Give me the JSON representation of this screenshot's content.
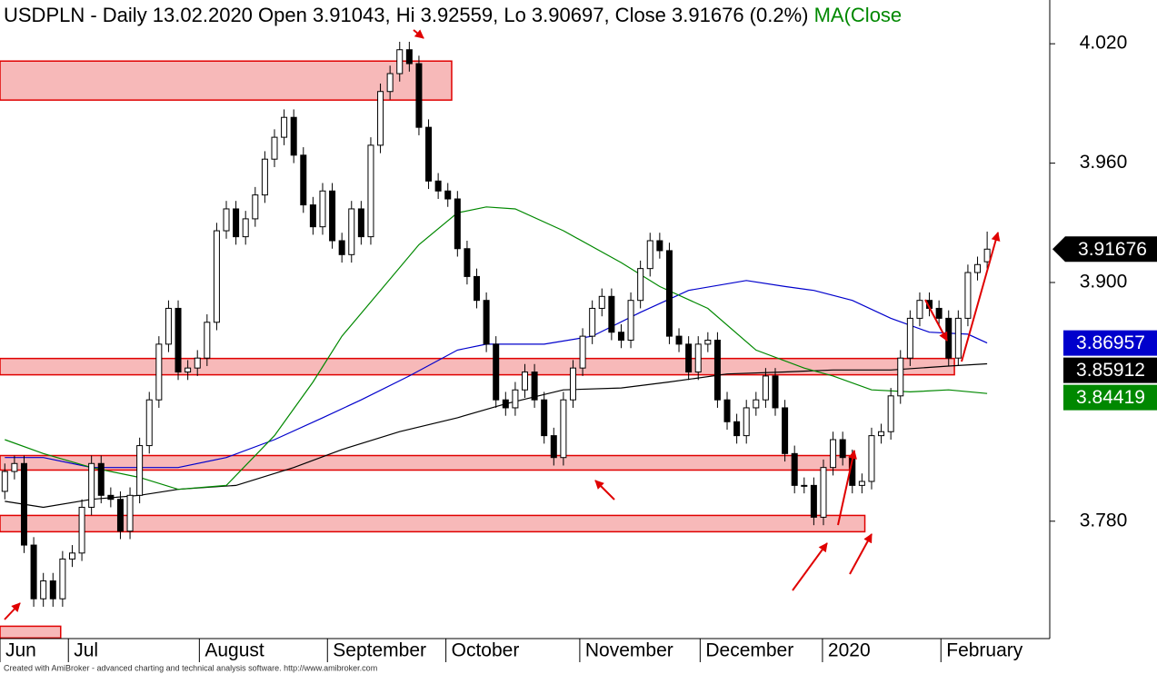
{
  "chart_data": {
    "type": "candlestick",
    "title": "USDPLN - Daily 13.02.2020 Open 3.91043, Hi 3.92559, Lo 3.90697, Close 3.91676 (0.2%)",
    "title_ma": "MA(Close",
    "footer": "Created with AmiBroker - advanced charting and technical analysis software. http://www.amibroker.com",
    "xlim": [
      -0.5,
      108.5
    ],
    "ylim": [
      3.721,
      4.042
    ],
    "grid": true,
    "yticks": [
      {
        "value": 4.02,
        "label": "4.020"
      },
      {
        "value": 3.96,
        "label": "3.960"
      },
      {
        "value": 3.9,
        "label": "3.900"
      },
      {
        "value": 3.78,
        "label": "3.780"
      }
    ],
    "xticks": [
      {
        "value": -0.5,
        "label": "Jun"
      },
      {
        "value": 6.6,
        "label": "Jul"
      },
      {
        "value": 20.2,
        "label": "August"
      },
      {
        "value": 33.5,
        "label": "September"
      },
      {
        "value": 45.8,
        "label": "October"
      },
      {
        "value": 59.7,
        "label": "November"
      },
      {
        "value": 72.2,
        "label": "December"
      },
      {
        "value": 84.9,
        "label": "2020"
      },
      {
        "value": 97.2,
        "label": "February"
      }
    ],
    "up_color": "#ffffff",
    "down_color": "#000000",
    "open": [
      3.795,
      3.805,
      3.809,
      3.768,
      3.741,
      3.75,
      3.741,
      3.761,
      3.764,
      3.787,
      3.809,
      3.793,
      3.791,
      3.775,
      3.793,
      3.818,
      3.841,
      3.869,
      3.887,
      3.855,
      3.857,
      3.862,
      3.88,
      3.926,
      3.937,
      3.923,
      3.932,
      3.944,
      3.962,
      3.973,
      3.983,
      3.964,
      3.939,
      3.928,
      3.946,
      3.921,
      3.914,
      3.937,
      3.923,
      3.969,
      3.996,
      4.005,
      4.017,
      4.01,
      3.978,
      3.951,
      3.946,
      3.942,
      3.917,
      3.903,
      3.891,
      3.869,
      3.841,
      3.837,
      3.846,
      3.855,
      3.841,
      3.823,
      3.812,
      3.841,
      3.857,
      3.873,
      3.887,
      3.893,
      3.875,
      3.871,
      3.891,
      3.907,
      3.921,
      3.916,
      3.873,
      3.869,
      3.855,
      3.869,
      3.871,
      3.841,
      3.83,
      3.823,
      3.837,
      3.841,
      3.853,
      3.837,
      3.814,
      3.798,
      3.798,
      3.782,
      3.807,
      3.821,
      3.812,
      3.798,
      3.8,
      3.823,
      3.825,
      3.843,
      3.862,
      3.882,
      3.891,
      3.887,
      3.882,
      3.862,
      3.882,
      3.905,
      3.91043
    ],
    "high": [
      3.809,
      3.813,
      3.813,
      3.772,
      3.754,
      3.754,
      3.765,
      3.768,
      3.791,
      3.813,
      3.813,
      3.797,
      3.795,
      3.797,
      3.822,
      3.845,
      3.873,
      3.891,
      3.891,
      3.861,
      3.866,
      3.884,
      3.93,
      3.941,
      3.941,
      3.936,
      3.948,
      3.966,
      3.977,
      3.987,
      3.987,
      3.968,
      3.943,
      3.95,
      3.95,
      3.925,
      3.941,
      3.941,
      3.973,
      4.0,
      4.009,
      4.021,
      4.021,
      4.014,
      3.982,
      3.955,
      3.95,
      3.946,
      3.921,
      3.907,
      3.895,
      3.873,
      3.845,
      3.85,
      3.859,
      3.859,
      3.845,
      3.827,
      3.845,
      3.861,
      3.877,
      3.891,
      3.897,
      3.897,
      3.879,
      3.895,
      3.911,
      3.925,
      3.925,
      3.92,
      3.877,
      3.873,
      3.873,
      3.875,
      3.875,
      3.845,
      3.834,
      3.841,
      3.845,
      3.857,
      3.857,
      3.841,
      3.818,
      3.802,
      3.802,
      3.811,
      3.825,
      3.825,
      3.816,
      3.804,
      3.827,
      3.829,
      3.847,
      3.866,
      3.886,
      3.895,
      3.895,
      3.891,
      3.886,
      3.886,
      3.909,
      3.913,
      3.92559
    ],
    "low": [
      3.791,
      3.801,
      3.764,
      3.737,
      3.737,
      3.737,
      3.737,
      3.757,
      3.76,
      3.783,
      3.789,
      3.787,
      3.771,
      3.771,
      3.789,
      3.814,
      3.837,
      3.865,
      3.851,
      3.851,
      3.853,
      3.858,
      3.876,
      3.922,
      3.919,
      3.919,
      3.928,
      3.94,
      3.958,
      3.969,
      3.96,
      3.935,
      3.924,
      3.924,
      3.917,
      3.91,
      3.91,
      3.919,
      3.919,
      3.965,
      3.992,
      4.001,
      4.006,
      3.974,
      3.947,
      3.942,
      3.938,
      3.913,
      3.899,
      3.887,
      3.865,
      3.837,
      3.833,
      3.833,
      3.842,
      3.837,
      3.819,
      3.808,
      3.808,
      3.837,
      3.853,
      3.869,
      3.883,
      3.871,
      3.867,
      3.867,
      3.887,
      3.903,
      3.912,
      3.869,
      3.865,
      3.851,
      3.851,
      3.865,
      3.837,
      3.826,
      3.819,
      3.819,
      3.833,
      3.837,
      3.833,
      3.81,
      3.794,
      3.794,
      3.778,
      3.778,
      3.803,
      3.808,
      3.794,
      3.794,
      3.796,
      3.819,
      3.821,
      3.839,
      3.858,
      3.878,
      3.883,
      3.878,
      3.858,
      3.858,
      3.878,
      3.901,
      3.90697
    ],
    "close": [
      3.805,
      3.809,
      3.768,
      3.741,
      3.75,
      3.741,
      3.761,
      3.764,
      3.787,
      3.809,
      3.793,
      3.791,
      3.775,
      3.793,
      3.818,
      3.841,
      3.869,
      3.887,
      3.855,
      3.857,
      3.862,
      3.88,
      3.926,
      3.937,
      3.923,
      3.932,
      3.944,
      3.962,
      3.973,
      3.983,
      3.964,
      3.939,
      3.928,
      3.946,
      3.921,
      3.914,
      3.937,
      3.923,
      3.969,
      3.996,
      4.005,
      4.017,
      4.01,
      3.978,
      3.951,
      3.946,
      3.942,
      3.917,
      3.903,
      3.891,
      3.869,
      3.841,
      3.837,
      3.846,
      3.855,
      3.841,
      3.823,
      3.812,
      3.841,
      3.857,
      3.873,
      3.887,
      3.893,
      3.875,
      3.871,
      3.891,
      3.907,
      3.921,
      3.916,
      3.873,
      3.869,
      3.855,
      3.869,
      3.871,
      3.841,
      3.83,
      3.823,
      3.837,
      3.841,
      3.853,
      3.837,
      3.814,
      3.798,
      3.798,
      3.782,
      3.807,
      3.821,
      3.812,
      3.798,
      3.8,
      3.823,
      3.825,
      3.843,
      3.862,
      3.882,
      3.891,
      3.887,
      3.882,
      3.862,
      3.882,
      3.905,
      3.909,
      3.91676
    ],
    "series": [
      {
        "color": "#0000cc",
        "x": [
          0,
          4,
          9,
          14,
          18,
          23,
          28,
          33,
          37,
          42,
          47,
          50,
          56,
          61,
          66,
          71,
          77,
          81,
          84,
          88,
          92,
          96,
          100,
          102
        ],
        "values": [
          3.812,
          3.812,
          3.807,
          3.807,
          3.807,
          3.812,
          3.821,
          3.832,
          3.841,
          3.853,
          3.866,
          3.869,
          3.869,
          3.873,
          3.885,
          3.896,
          3.901,
          3.898,
          3.896,
          3.891,
          3.882,
          3.875,
          3.874,
          3.86957
        ]
      },
      {
        "color": "#000000",
        "x": [
          0,
          4,
          9,
          14,
          18,
          24,
          30,
          35,
          41,
          47,
          52,
          58,
          64,
          69,
          75,
          81,
          86,
          92,
          98,
          102
        ],
        "values": [
          3.79,
          3.787,
          3.791,
          3.793,
          3.796,
          3.798,
          3.807,
          3.816,
          3.825,
          3.832,
          3.839,
          3.846,
          3.847,
          3.85,
          3.854,
          3.855,
          3.856,
          3.856,
          3.858,
          3.85912
        ]
      },
      {
        "color": "#008800",
        "x": [
          0,
          4,
          9,
          14,
          18,
          23,
          28,
          32,
          35,
          39,
          43,
          47,
          50,
          53,
          58,
          64,
          68,
          73,
          78,
          83,
          86,
          90,
          94,
          98,
          102
        ],
        "values": [
          3.821,
          3.814,
          3.807,
          3.802,
          3.796,
          3.798,
          3.823,
          3.85,
          3.873,
          3.896,
          3.919,
          3.935,
          3.938,
          3.937,
          3.926,
          3.91,
          3.898,
          3.887,
          3.866,
          3.857,
          3.853,
          3.846,
          3.845,
          3.846,
          3.84419
        ]
      }
    ],
    "zone_color": "#f7b9b9",
    "zones": [
      {
        "from": 3.9917,
        "to": 4.0113,
        "end": 46.4
      },
      {
        "from": 3.8536,
        "to": 3.8618,
        "end": 98.6
      },
      {
        "from": 3.8057,
        "to": 3.813,
        "end": 87.7
      },
      {
        "from": 3.7747,
        "to": 3.7829,
        "end": 89.3
      },
      {
        "from": 3.7213,
        "to": 3.7272,
        "end": 5.8
      }
    ]
  }
}
